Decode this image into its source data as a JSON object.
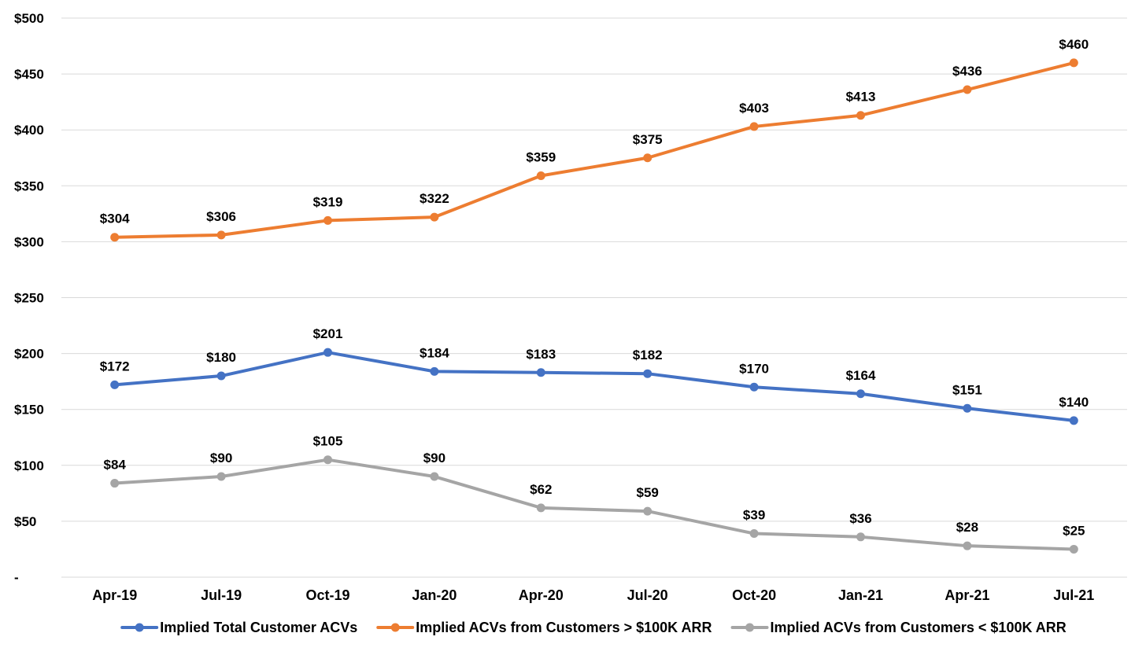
{
  "chart_data": {
    "type": "line",
    "title": "",
    "xlabel": "",
    "ylabel": "",
    "categories": [
      "Apr-19",
      "Jul-19",
      "Oct-19",
      "Jan-20",
      "Apr-20",
      "Jul-20",
      "Oct-20",
      "Jan-21",
      "Apr-21",
      "Jul-21"
    ],
    "ylim": [
      0,
      500
    ],
    "y_ticks": [
      0,
      50,
      100,
      150,
      200,
      250,
      300,
      350,
      400,
      450,
      500
    ],
    "y_tick_labels": [
      "-",
      "$50",
      "$100",
      "$150",
      "$200",
      "$250",
      "$300",
      "$350",
      "$400",
      "$450",
      "$500"
    ],
    "grid": true,
    "legend_position": "bottom",
    "series": [
      {
        "name": "Implied Total Customer ACVs",
        "color": "#4472C4",
        "values": [
          172,
          180,
          201,
          184,
          183,
          182,
          170,
          164,
          151,
          140
        ],
        "labels": [
          "$172",
          "$180",
          "$201",
          "$184",
          "$183",
          "$182",
          "$170",
          "$164",
          "$151",
          "$140"
        ]
      },
      {
        "name": "Implied ACVs from Customers > $100K ARR",
        "color": "#ED7D31",
        "values": [
          304,
          306,
          319,
          322,
          359,
          375,
          403,
          413,
          436,
          460
        ],
        "labels": [
          "$304",
          "$306",
          "$319",
          "$322",
          "$359",
          "$375",
          "$403",
          "$413",
          "$436",
          "$460"
        ]
      },
      {
        "name": "Implied ACVs from Customers < $100K ARR",
        "color": "#A5A5A5",
        "values": [
          84,
          90,
          105,
          90,
          62,
          59,
          39,
          36,
          28,
          25
        ],
        "labels": [
          "$84",
          "$90",
          "$105",
          "$90",
          "$62",
          "$59",
          "$39",
          "$36",
          "$28",
          "$25"
        ]
      }
    ]
  }
}
